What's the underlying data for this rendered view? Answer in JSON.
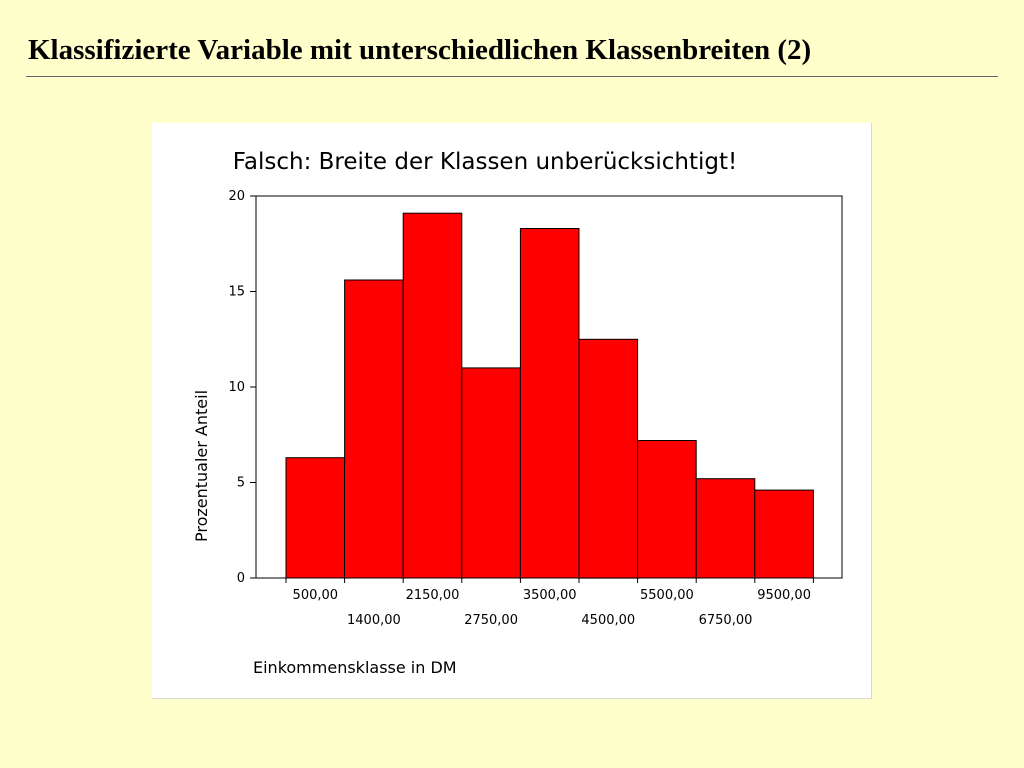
{
  "slide": {
    "title": "Klassifizierte Variable mit unterschiedlichen Klassenbreiten (2)"
  },
  "chart_data": {
    "type": "bar",
    "title": "Falsch: Breite der Klassen unberücksichtigt!",
    "xlabel": "Einkommensklasse in DM",
    "ylabel": "Prozentualer Anteil",
    "categories": [
      "500,00",
      "1400,00",
      "2150,00",
      "2750,00",
      "3500,00",
      "4500,00",
      "5500,00",
      "6750,00",
      "9500,00"
    ],
    "values": [
      6.3,
      15.6,
      19.1,
      11.0,
      18.3,
      12.5,
      7.2,
      5.2,
      4.6
    ],
    "ylim": [
      0,
      20
    ],
    "yticks": [
      0,
      5,
      10,
      15,
      20
    ],
    "bar_color": "#ff0000",
    "bar_edge_color": "#000000",
    "grid": false
  }
}
